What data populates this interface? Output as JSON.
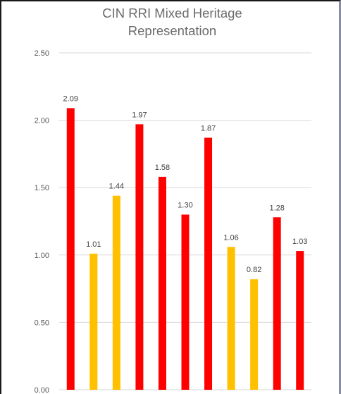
{
  "chart_data": {
    "type": "bar",
    "title_lines": [
      "CIN RRI Mixed Heritage",
      "Representation"
    ],
    "xlabel": "",
    "ylabel": "",
    "ylim": [
      0,
      2.5
    ],
    "yticks": [
      "0.00",
      "0.50",
      "1.00",
      "1.50",
      "2.00",
      "2.50"
    ],
    "ytick_values": [
      0,
      0.5,
      1.0,
      1.5,
      2.0,
      2.5
    ],
    "grid": true,
    "legend": "none",
    "values": [
      2.09,
      1.01,
      1.44,
      1.97,
      1.58,
      1.3,
      1.87,
      1.06,
      0.82,
      1.28,
      1.03
    ],
    "data_labels": [
      "2.09",
      "1.01",
      "1.44",
      "1.97",
      "1.58",
      "1.30",
      "1.87",
      "1.06",
      "0.82",
      "1.28",
      "1.03"
    ],
    "bar_colors": [
      "#ff0000",
      "#ffc000",
      "#ffc000",
      "#ff0000",
      "#ff0000",
      "#ff0000",
      "#ff0000",
      "#ffc000",
      "#ffc000",
      "#ff0000",
      "#ff0000"
    ]
  },
  "colors": {
    "red": "#ff0000",
    "amber": "#ffc000",
    "gridline": "#d9d9d9",
    "title": "#6b6b6b"
  }
}
